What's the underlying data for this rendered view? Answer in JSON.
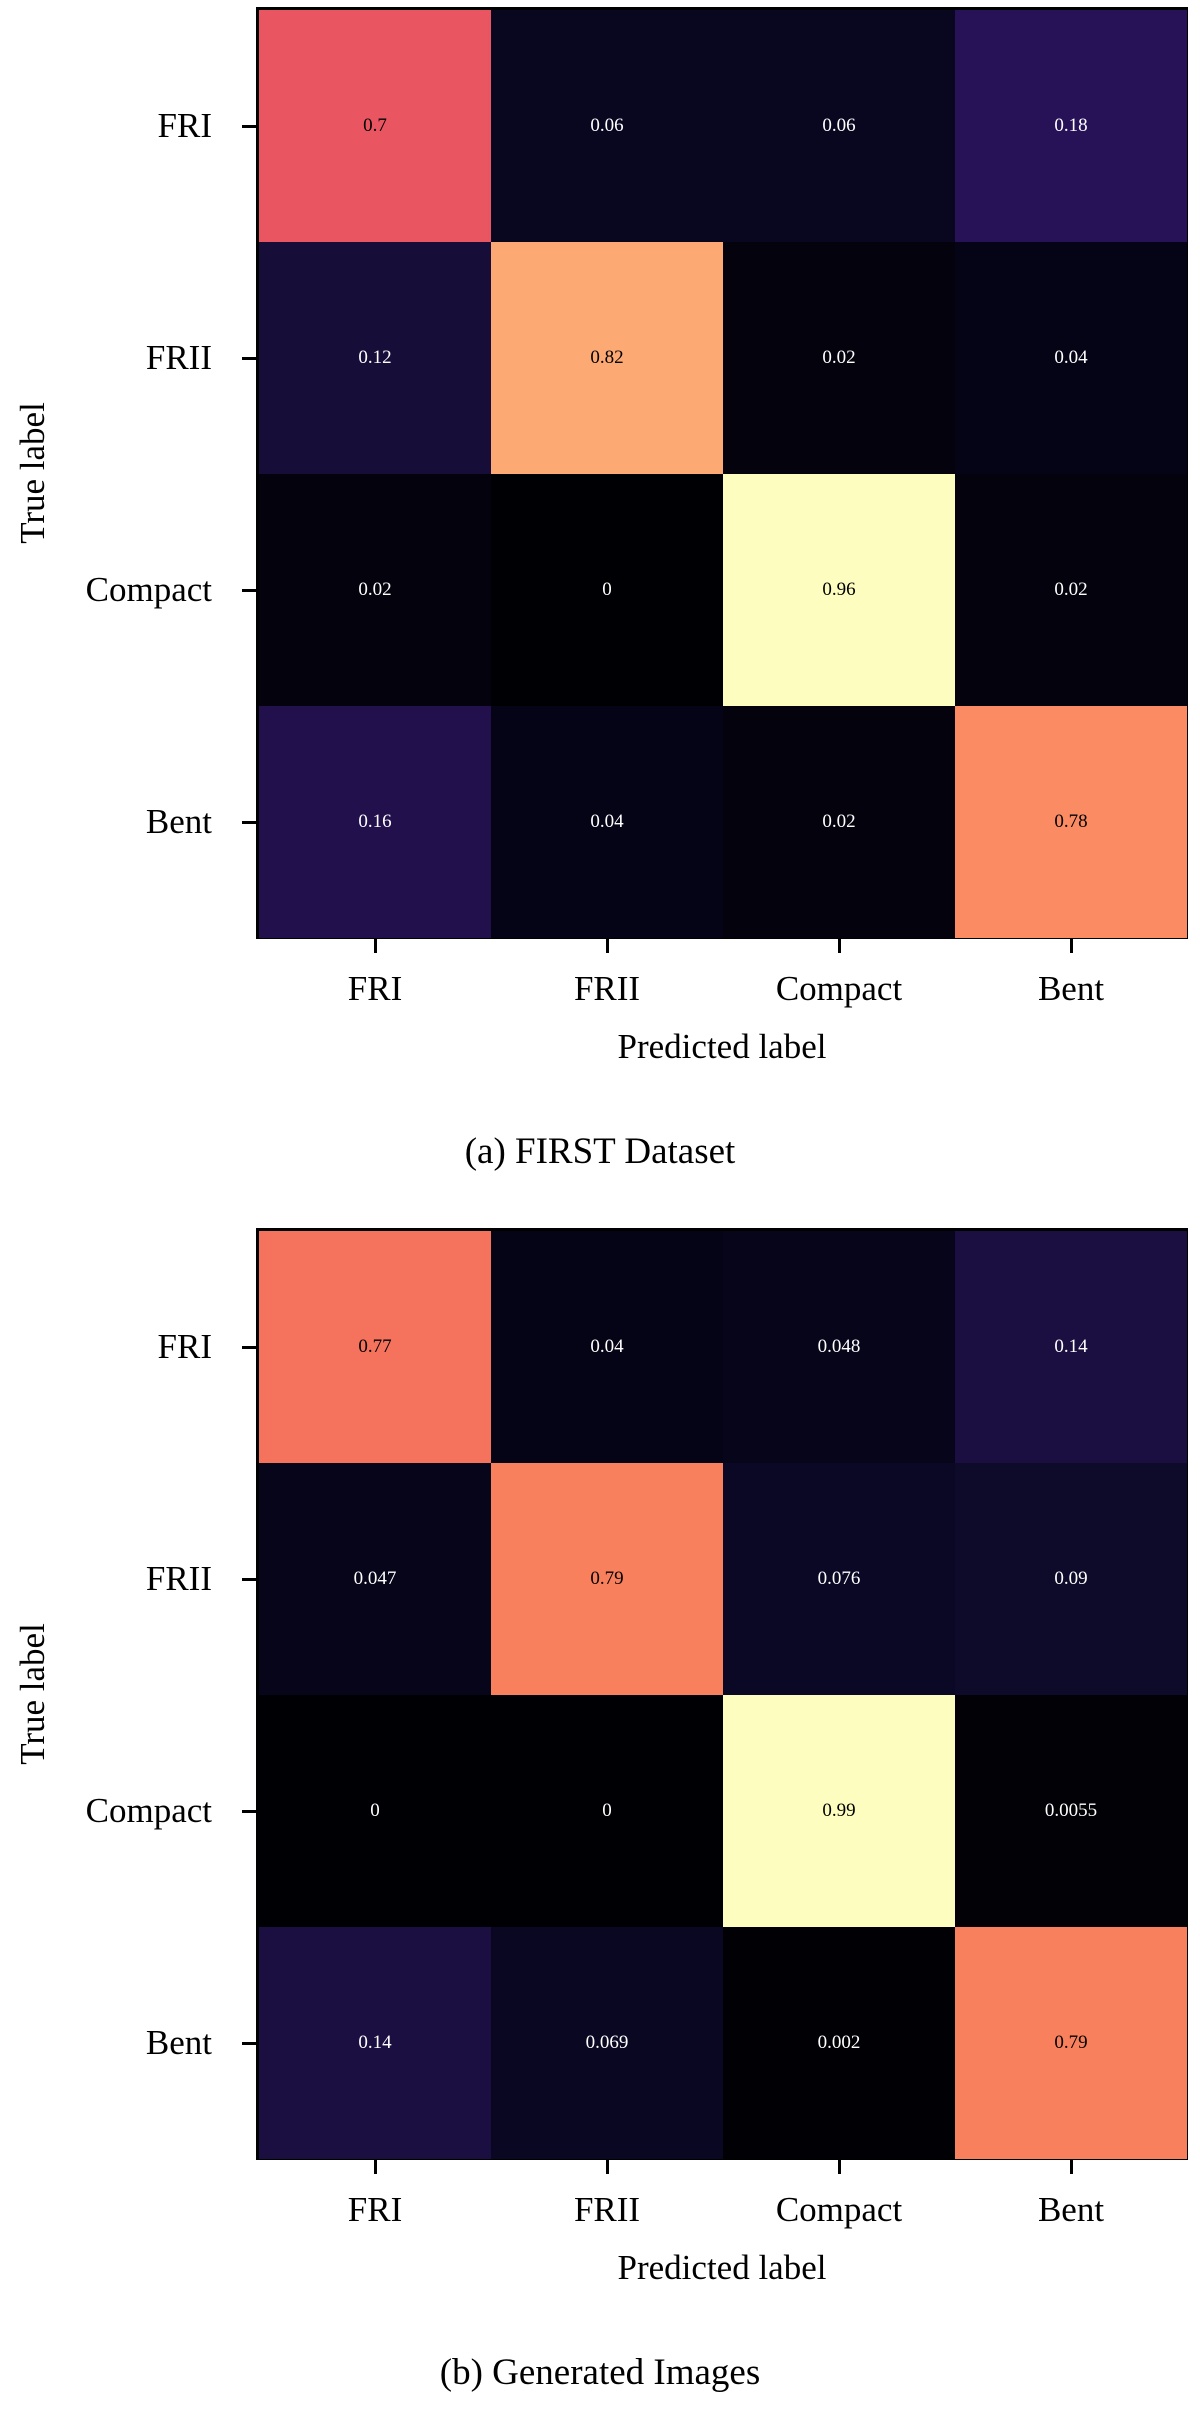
{
  "chart_data": [
    {
      "type": "heatmap",
      "caption": "(a) FIRST Dataset",
      "xlabel": "Predicted label",
      "ylabel": "True label",
      "x_categories": [
        "FRI",
        "FRII",
        "Compact",
        "Bent"
      ],
      "y_categories": [
        "FRI",
        "FRII",
        "Compact",
        "Bent"
      ],
      "colormap": "magma",
      "values": [
        [
          0.7,
          0.06,
          0.06,
          0.18
        ],
        [
          0.12,
          0.82,
          0.02,
          0.04
        ],
        [
          0.02,
          0,
          0.96,
          0.02
        ],
        [
          0.16,
          0.04,
          0.02,
          0.78
        ]
      ],
      "labels": [
        [
          "0.7",
          "0.06",
          "0.06",
          "0.18"
        ],
        [
          "0.12",
          "0.82",
          "0.02",
          "0.04"
        ],
        [
          "0.02",
          "0",
          "0.96",
          "0.02"
        ],
        [
          "0.16",
          "0.04",
          "0.02",
          "0.78"
        ]
      ]
    },
    {
      "type": "heatmap",
      "caption": "(b) Generated Images",
      "xlabel": "Predicted label",
      "ylabel": "True label",
      "x_categories": [
        "FRI",
        "FRII",
        "Compact",
        "Bent"
      ],
      "y_categories": [
        "FRI",
        "FRII",
        "Compact",
        "Bent"
      ],
      "colormap": "magma",
      "values": [
        [
          0.77,
          0.04,
          0.048,
          0.14
        ],
        [
          0.047,
          0.79,
          0.076,
          0.09
        ],
        [
          0,
          0,
          0.99,
          0.0055
        ],
        [
          0.14,
          0.069,
          0.002,
          0.79
        ]
      ],
      "labels": [
        [
          "0.77",
          "0.04",
          "0.048",
          "0.14"
        ],
        [
          "0.047",
          "0.79",
          "0.076",
          "0.09"
        ],
        [
          "0",
          "0",
          "0.99",
          "0.0055"
        ],
        [
          "0.14",
          "0.069",
          "0.002",
          "0.79"
        ]
      ]
    }
  ]
}
